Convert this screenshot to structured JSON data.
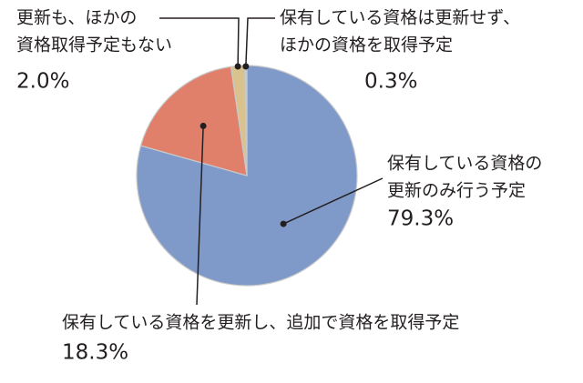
{
  "chart_data": {
    "type": "pie",
    "categories": [
      [
        "保有している資格の",
        "更新のみ行う予定"
      ],
      [
        "保有している資格を更新し、追加で資格を取得予定"
      ],
      [
        "更新も、ほかの",
        "資格取得予定もない"
      ],
      [
        "保有している資格は更新せず、",
        "ほかの資格を取得予定"
      ]
    ],
    "values": [
      79.3,
      18.3,
      2.0,
      0.3
    ],
    "value_labels": [
      "79.3%",
      "18.3%",
      "2.0%",
      "0.3%"
    ],
    "colors": [
      "#7f9ac9",
      "#e0806b",
      "#d9c28e",
      "#b9cfe0"
    ]
  }
}
